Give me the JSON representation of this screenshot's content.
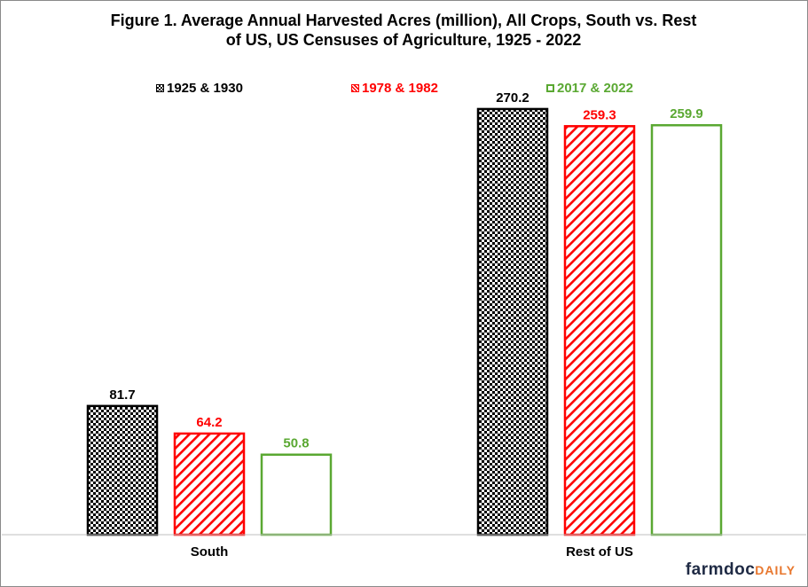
{
  "chart_data": {
    "type": "bar",
    "title_line1": "Figure 1.  Average Annual Harvested Acres (million), All Crops, South vs. Rest",
    "title_line2": "of US, US Censuses of Agriculture, 1925 - 2022",
    "categories": [
      "South",
      "Rest of US"
    ],
    "series": [
      {
        "name": "1925 & 1930",
        "values": [
          81.7,
          270.2
        ],
        "color": "#000000",
        "pattern": "checker"
      },
      {
        "name": "1978 & 1982",
        "values": [
          64.2,
          259.3
        ],
        "color": "#ff0000",
        "pattern": "diagonal"
      },
      {
        "name": "2017 & 2022",
        "values": [
          50.8,
          259.9
        ],
        "color": "#5aa832",
        "pattern": "none"
      }
    ],
    "data_labels": [
      [
        "81.7",
        "64.2",
        "50.8"
      ],
      [
        "270.2",
        "259.3",
        "259.9"
      ]
    ],
    "ylim": [
      0,
      300
    ],
    "grid": false,
    "legend_position": "top"
  },
  "brand": {
    "name": "farmdoc",
    "suffix": "DAILY"
  }
}
